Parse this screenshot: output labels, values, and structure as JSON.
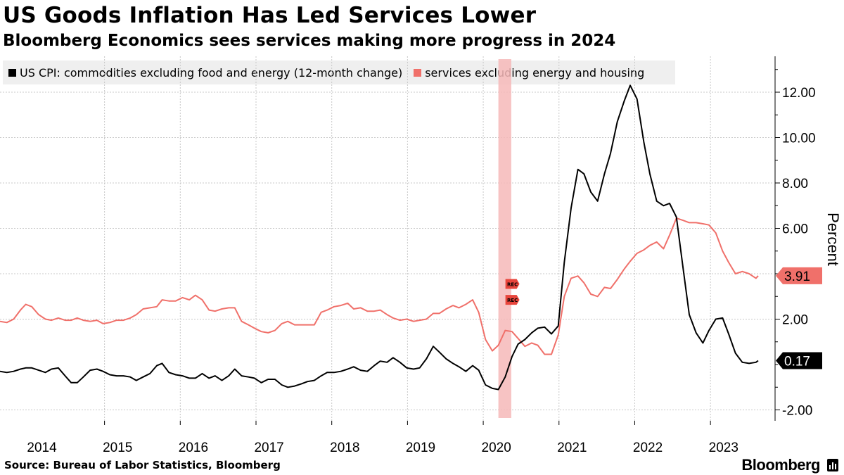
{
  "title": "US Goods Inflation Has Led Services Lower",
  "subtitle": "Bloomberg Economics sees services making more progress in 2024",
  "source": "Source: Bureau of Labor Statistics, Bloomberg",
  "brand": "Bloomberg",
  "chart_data": {
    "type": "line",
    "ylabel": "Percent",
    "ylim": [
      -2.5,
      13.5
    ],
    "yticks": [
      -2,
      2,
      4,
      6,
      8,
      10,
      12
    ],
    "ytick_labels": [
      "-2.00",
      "2.00",
      "",
      "6.00",
      "8.00",
      "10.00",
      "12.00"
    ],
    "xtick_labels": [
      "2014",
      "2015",
      "2016",
      "2017",
      "2018",
      "2019",
      "2020",
      "2021",
      "2022",
      "2023"
    ],
    "xlim": [
      2013.54,
      2023.55
    ],
    "grid": true,
    "legend_position": "top-left",
    "recession": {
      "label": "REC",
      "start": 2020.12,
      "end": 2020.29
    },
    "last_value_labels": [
      "3.91",
      "0.17"
    ],
    "series": [
      {
        "name": "US CPI: commodities excluding food and energy (12-month change)",
        "color": "#000000",
        "x": [
          2013.54,
          2013.63,
          2013.72,
          2013.81,
          2013.88,
          2013.96,
          2014.05,
          2014.14,
          2014.22,
          2014.31,
          2014.4,
          2014.48,
          2014.56,
          2014.64,
          2014.73,
          2014.82,
          2014.9,
          2014.99,
          2015.08,
          2015.17,
          2015.26,
          2015.34,
          2015.43,
          2015.52,
          2015.61,
          2015.68,
          2015.77,
          2015.86,
          2015.95,
          2016.04,
          2016.12,
          2016.21,
          2016.3,
          2016.38,
          2016.47,
          2016.56,
          2016.64,
          2016.73,
          2016.82,
          2016.9,
          2016.99,
          2017.08,
          2017.17,
          2017.26,
          2017.34,
          2017.43,
          2017.52,
          2017.6,
          2017.69,
          2017.78,
          2017.86,
          2017.95,
          2018.04,
          2018.13,
          2018.21,
          2018.3,
          2018.39,
          2018.48,
          2018.56,
          2018.65,
          2018.73,
          2018.82,
          2018.91,
          2019.0,
          2019.08,
          2019.17,
          2019.26,
          2019.34,
          2019.43,
          2019.52,
          2019.6,
          2019.69,
          2019.78,
          2019.86,
          2019.95,
          2020.04,
          2020.12,
          2020.21,
          2020.3,
          2020.38,
          2020.47,
          2020.56,
          2020.64,
          2020.73,
          2020.82,
          2020.91,
          2020.99,
          2021.08,
          2021.17,
          2021.25,
          2021.34,
          2021.43,
          2021.52,
          2021.6,
          2021.69,
          2021.78,
          2021.86,
          2021.95,
          2022.04,
          2022.12,
          2022.21,
          2022.3,
          2022.38,
          2022.47,
          2022.56,
          2022.64,
          2022.73,
          2022.82,
          2022.9,
          2022.99,
          2023.08,
          2023.16,
          2023.25,
          2023.34,
          2023.43,
          2023.52,
          2023.55
        ],
        "y": [
          -0.3,
          -0.35,
          -0.3,
          -0.2,
          -0.15,
          -0.15,
          -0.25,
          -0.35,
          -0.2,
          -0.15,
          -0.5,
          -0.8,
          -0.8,
          -0.55,
          -0.25,
          -0.2,
          -0.3,
          -0.45,
          -0.5,
          -0.5,
          -0.55,
          -0.7,
          -0.55,
          -0.4,
          -0.05,
          0.05,
          -0.35,
          -0.45,
          -0.5,
          -0.6,
          -0.6,
          -0.4,
          -0.6,
          -0.5,
          -0.7,
          -0.5,
          -0.2,
          -0.5,
          -0.55,
          -0.6,
          -0.8,
          -0.65,
          -0.65,
          -0.9,
          -1.0,
          -0.95,
          -0.85,
          -0.75,
          -0.7,
          -0.5,
          -0.35,
          -0.35,
          -0.3,
          -0.2,
          -0.1,
          -0.25,
          -0.3,
          -0.05,
          0.15,
          0.1,
          0.3,
          0.1,
          -0.15,
          -0.2,
          -0.15,
          0.25,
          0.8,
          0.55,
          0.25,
          0.05,
          -0.1,
          -0.3,
          -0.05,
          -0.25,
          -0.9,
          -1.05,
          -1.1,
          -0.55,
          0.35,
          0.9,
          1.1,
          1.4,
          1.6,
          1.65,
          1.35,
          1.7,
          4.5,
          6.9,
          8.6,
          8.4,
          7.6,
          7.2,
          8.4,
          9.3,
          10.7,
          11.6,
          12.3,
          11.7,
          9.8,
          8.4,
          7.2,
          7.0,
          7.1,
          6.5,
          4.2,
          2.2,
          1.4,
          0.95,
          1.5,
          2.0,
          2.05,
          1.35,
          0.5,
          0.1,
          0.05,
          0.1,
          0.17
        ]
      },
      {
        "name": "services excluding energy and housing",
        "color": "#f0706a",
        "x": [
          2013.54,
          2013.63,
          2013.72,
          2013.81,
          2013.88,
          2013.96,
          2014.05,
          2014.14,
          2014.22,
          2014.31,
          2014.4,
          2014.48,
          2014.56,
          2014.64,
          2014.73,
          2014.82,
          2014.9,
          2014.99,
          2015.08,
          2015.17,
          2015.26,
          2015.34,
          2015.43,
          2015.52,
          2015.61,
          2015.68,
          2015.77,
          2015.86,
          2015.95,
          2016.04,
          2016.12,
          2016.21,
          2016.3,
          2016.38,
          2016.47,
          2016.56,
          2016.64,
          2016.73,
          2016.82,
          2016.9,
          2016.99,
          2017.08,
          2017.17,
          2017.26,
          2017.34,
          2017.43,
          2017.52,
          2017.6,
          2017.69,
          2017.78,
          2017.86,
          2017.95,
          2018.04,
          2018.13,
          2018.21,
          2018.3,
          2018.39,
          2018.48,
          2018.56,
          2018.65,
          2018.73,
          2018.82,
          2018.91,
          2019.0,
          2019.08,
          2019.17,
          2019.26,
          2019.34,
          2019.43,
          2019.52,
          2019.6,
          2019.69,
          2019.78,
          2019.86,
          2019.95,
          2020.04,
          2020.12,
          2020.21,
          2020.3,
          2020.38,
          2020.47,
          2020.56,
          2020.64,
          2020.73,
          2020.82,
          2020.91,
          2020.99,
          2021.08,
          2021.17,
          2021.25,
          2021.34,
          2021.43,
          2021.52,
          2021.6,
          2021.69,
          2021.78,
          2021.86,
          2021.95,
          2022.04,
          2022.12,
          2022.21,
          2022.3,
          2022.38,
          2022.47,
          2022.56,
          2022.64,
          2022.73,
          2022.82,
          2022.9,
          2022.99,
          2023.08,
          2023.16,
          2023.25,
          2023.34,
          2023.43,
          2023.52,
          2023.55
        ],
        "y": [
          1.9,
          1.85,
          2.0,
          2.4,
          2.65,
          2.55,
          2.2,
          2.0,
          1.95,
          2.05,
          1.95,
          1.95,
          2.05,
          1.95,
          1.9,
          1.95,
          1.8,
          1.85,
          1.95,
          1.95,
          2.05,
          2.2,
          2.45,
          2.5,
          2.55,
          2.85,
          2.8,
          2.8,
          2.95,
          2.85,
          3.05,
          2.85,
          2.4,
          2.35,
          2.45,
          2.5,
          2.5,
          1.9,
          1.75,
          1.6,
          1.45,
          1.4,
          1.5,
          1.8,
          1.9,
          1.75,
          1.75,
          1.75,
          1.75,
          2.3,
          2.4,
          2.55,
          2.6,
          2.7,
          2.45,
          2.5,
          2.35,
          2.35,
          2.4,
          2.2,
          2.05,
          1.95,
          2.0,
          1.9,
          1.95,
          2.0,
          2.25,
          2.25,
          2.45,
          2.6,
          2.5,
          2.65,
          2.85,
          2.3,
          1.1,
          0.6,
          0.85,
          1.5,
          1.45,
          1.15,
          0.8,
          0.95,
          0.85,
          0.45,
          0.45,
          1.3,
          3.0,
          3.8,
          3.9,
          3.6,
          3.1,
          3.0,
          3.4,
          3.35,
          3.75,
          4.2,
          4.55,
          4.9,
          5.05,
          5.25,
          5.4,
          5.1,
          5.7,
          6.45,
          6.35,
          6.25,
          6.25,
          6.2,
          6.15,
          5.8,
          5.0,
          4.5,
          4.0,
          4.1,
          4.0,
          3.8,
          3.91
        ]
      }
    ]
  }
}
